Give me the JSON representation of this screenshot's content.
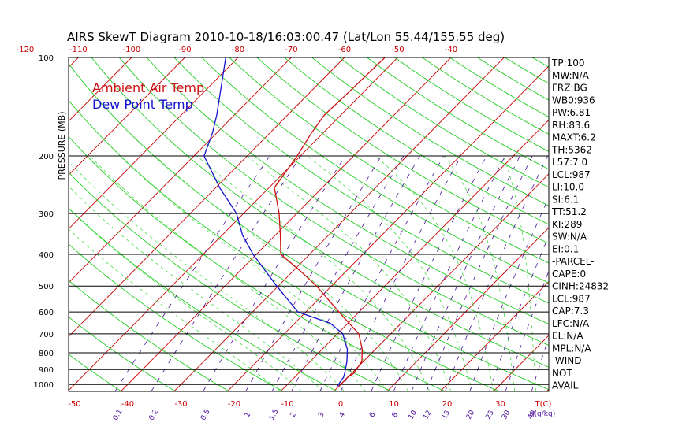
{
  "title": "AIRS SkewT Diagram 2010-10-18/16:03:00.47 (Lat/Lon 55.44/155.55 deg)",
  "colors": {
    "temp": "#cc1111",
    "dewpoint": "#1111cc",
    "isotherm": "#cc0000",
    "dry_adiabat": "#22cc22",
    "moist_adiabat": "#44dd44",
    "mixing_ratio": "#4b0f9a",
    "isobar": "#000000"
  },
  "chart_data": {
    "type": "line",
    "subtype": "skew-t log-p",
    "ylabel": "PRESSURE (MB)",
    "ylim": [
      1050,
      100
    ],
    "pressure_ticks": [
      100,
      200,
      300,
      400,
      500,
      600,
      700,
      800,
      900,
      1000
    ],
    "pressure_tick_labels": [
      "100",
      "200",
      "300",
      "400",
      "500",
      "600",
      "700",
      "800",
      "900",
      "1000"
    ],
    "top_temp_ticks": [
      -120,
      -110,
      -100,
      -90,
      -80,
      -70,
      -60,
      -50,
      -40
    ],
    "top_temp_tick_labels": [
      "-120",
      "-110",
      "-100",
      "-90",
      "-80",
      "-70",
      "-60",
      "-50",
      "-40"
    ],
    "bottom_temp_ticks": [
      -50,
      -40,
      -30,
      -20,
      -10,
      0,
      10,
      20,
      30
    ],
    "bottom_temp_tick_labels": [
      "-50",
      "-40",
      "-30",
      "-20",
      "-10",
      "0",
      "10",
      "20",
      "30"
    ],
    "bottom_unit_label": "T(C)",
    "mixing_ratio_ticks": [
      0.1,
      0.2,
      0.5,
      1,
      1.5,
      2,
      3,
      4,
      6,
      8,
      10,
      12,
      15,
      20,
      25,
      30,
      40
    ],
    "mixing_ratio_tick_labels": [
      "0.1",
      "0.2",
      "0.5",
      "1",
      "1.5",
      "2",
      "3",
      "4",
      "6",
      "8",
      "10",
      "12",
      "15",
      "20",
      "25",
      "30",
      "40"
    ],
    "mixing_ratio_unit_label": "q(g/kg)",
    "series": [
      {
        "name": "Ambient Air Temp",
        "color": "#cc1111",
        "points": [
          {
            "p": 1013,
            "t": 0.0
          },
          {
            "p": 950,
            "t": 0.0
          },
          {
            "p": 925,
            "t": 0.4
          },
          {
            "p": 850,
            "t": -0.3
          },
          {
            "p": 780,
            "t": -2.5
          },
          {
            "p": 700,
            "t": -6.0
          },
          {
            "p": 600,
            "t": -13.8
          },
          {
            "p": 500,
            "t": -22.8
          },
          {
            "p": 450,
            "t": -28.6
          },
          {
            "p": 400,
            "t": -35.4
          },
          {
            "p": 350,
            "t": -39.0
          },
          {
            "p": 300,
            "t": -43.3
          },
          {
            "p": 250,
            "t": -49.0
          },
          {
            "p": 200,
            "t": -50.6
          },
          {
            "p": 170,
            "t": -52.2
          },
          {
            "p": 150,
            "t": -53.1
          },
          {
            "p": 130,
            "t": -52.8
          },
          {
            "p": 100,
            "t": -52.4
          }
        ]
      },
      {
        "name": "Dew Point Temp",
        "color": "#1111cc",
        "points": [
          {
            "p": 1013,
            "t": -0.3
          },
          {
            "p": 950,
            "t": -0.8
          },
          {
            "p": 925,
            "t": -1.3
          },
          {
            "p": 850,
            "t": -3.1
          },
          {
            "p": 780,
            "t": -5.3
          },
          {
            "p": 700,
            "t": -9.0
          },
          {
            "p": 650,
            "t": -13.3
          },
          {
            "p": 600,
            "t": -21.5
          },
          {
            "p": 500,
            "t": -30.3
          },
          {
            "p": 400,
            "t": -40.6
          },
          {
            "p": 350,
            "t": -46.1
          },
          {
            "p": 300,
            "t": -51.3
          },
          {
            "p": 250,
            "t": -59.3
          },
          {
            "p": 200,
            "t": -68.1
          },
          {
            "p": 170,
            "t": -70.8
          },
          {
            "p": 150,
            "t": -73.3
          },
          {
            "p": 100,
            "t": -82.3
          }
        ]
      }
    ],
    "legend": [
      "Ambient Air Temp",
      "Dew Point Temp"
    ],
    "legend_position": "top-left"
  },
  "indices": [
    "TP:100",
    "MW:N/A",
    "FRZ:BG",
    "WB0:936",
    "PW:6.81",
    "RH:83.6",
    "MAXT:6.2",
    "TH:5362",
    "L57:7.0",
    "LCL:987",
    "LI:10.0",
    "SI:6.1",
    "TT:51.2",
    "KI:289",
    "SW:N/A",
    "EI:0.1",
    "-PARCEL-",
    "CAPE:0",
    "CINH:24832",
    "LCL:987",
    "CAP:7.3",
    "LFC:N/A",
    "EL:N/A",
    "MPL:N/A",
    "-WIND-",
    "NOT",
    "AVAIL"
  ]
}
